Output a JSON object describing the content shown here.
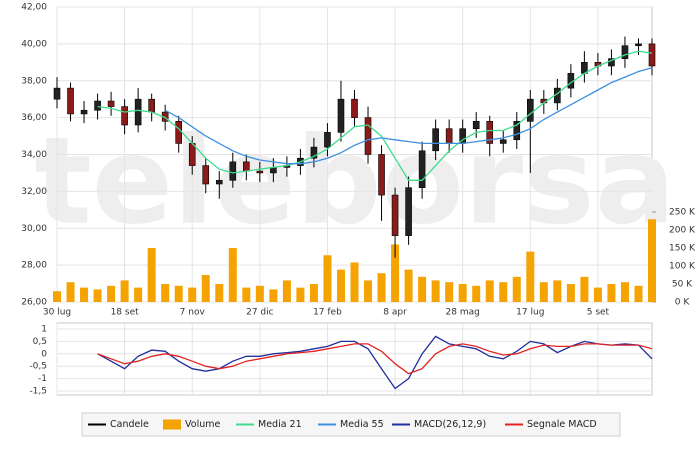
{
  "chart_data": {
    "type": "candlestick",
    "watermark": "teleborsa",
    "grid": true,
    "categories": [
      "30 lug",
      null,
      null,
      null,
      null,
      "18 set",
      null,
      null,
      null,
      null,
      "7 nov",
      null,
      null,
      null,
      null,
      "27 dic",
      null,
      null,
      null,
      null,
      "17 feb",
      null,
      null,
      null,
      null,
      "8 apr",
      null,
      null,
      null,
      null,
      "28 mag",
      null,
      null,
      null,
      null,
      "17 lug",
      null,
      null,
      null,
      null,
      "5 set",
      null,
      null,
      null,
      null
    ],
    "candles": {
      "name": "Candele",
      "color": "#000000",
      "up_color": "#222222",
      "down_color": "#8b1a1a",
      "open": [
        37.0,
        37.6,
        36.2,
        36.4,
        36.9,
        36.6,
        35.6,
        37.0,
        36.3,
        35.8,
        34.6,
        33.4,
        32.4,
        32.6,
        33.6,
        33.1,
        33.0,
        33.3,
        33.4,
        33.8,
        34.4,
        35.2,
        37.0,
        36.0,
        34.0,
        31.8,
        29.6,
        32.2,
        34.2,
        35.4,
        34.6,
        35.4,
        35.8,
        34.6,
        34.8,
        35.8,
        37.0,
        36.8,
        37.6,
        38.4,
        39.0,
        38.8,
        39.2,
        39.9,
        40.0
      ],
      "high": [
        38.2,
        37.9,
        36.9,
        37.3,
        37.4,
        37.0,
        37.6,
        37.3,
        36.7,
        36.1,
        35.0,
        33.8,
        33.1,
        34.1,
        34.0,
        33.6,
        33.8,
        33.9,
        34.3,
        34.9,
        35.7,
        38.0,
        37.5,
        36.6,
        34.5,
        32.2,
        32.8,
        34.7,
        35.9,
        35.9,
        35.9,
        36.3,
        36.1,
        35.3,
        36.3,
        37.5,
        37.5,
        38.1,
        38.9,
        39.6,
        39.5,
        39.7,
        40.4,
        40.3,
        40.3
      ],
      "low": [
        36.5,
        35.8,
        35.7,
        35.9,
        36.1,
        35.1,
        35.2,
        35.8,
        35.3,
        34.1,
        32.9,
        31.9,
        31.6,
        32.2,
        32.6,
        32.5,
        32.5,
        32.8,
        32.9,
        33.3,
        33.9,
        34.7,
        35.5,
        33.5,
        30.4,
        28.4,
        29.1,
        31.6,
        33.7,
        34.1,
        34.1,
        34.9,
        33.9,
        34.1,
        34.3,
        33.0,
        36.2,
        36.4,
        37.1,
        37.9,
        38.3,
        38.3,
        38.7,
        39.4,
        38.3
      ],
      "close": [
        37.6,
        36.2,
        36.4,
        36.9,
        36.6,
        35.6,
        37.0,
        36.3,
        35.8,
        34.6,
        33.4,
        32.4,
        32.6,
        33.6,
        33.1,
        33.0,
        33.3,
        33.4,
        33.8,
        34.4,
        35.2,
        37.0,
        36.0,
        34.0,
        31.8,
        29.6,
        32.2,
        34.2,
        35.4,
        34.6,
        35.4,
        35.8,
        34.6,
        34.8,
        35.8,
        37.0,
        36.8,
        37.6,
        38.4,
        39.0,
        38.8,
        39.2,
        39.9,
        40.0,
        38.8
      ]
    },
    "volume": {
      "name": "Volume",
      "color": "#f5a300",
      "axis": "y2",
      "values": [
        30000,
        55000,
        40000,
        35000,
        45000,
        60000,
        40000,
        150000,
        50000,
        45000,
        40000,
        75000,
        50000,
        150000,
        40000,
        45000,
        35000,
        60000,
        40000,
        50000,
        130000,
        90000,
        110000,
        60000,
        80000,
        160000,
        90000,
        70000,
        60000,
        55000,
        50000,
        45000,
        60000,
        55000,
        70000,
        140000,
        55000,
        60000,
        50000,
        70000,
        40000,
        50000,
        55000,
        45000,
        230000
      ]
    },
    "series": [
      {
        "name": "Media 21",
        "color": "#3ddc8c",
        "values": [
          null,
          null,
          null,
          36.6,
          36.5,
          36.3,
          36.4,
          36.3,
          36.0,
          35.4,
          34.6,
          33.8,
          33.2,
          33.0,
          33.1,
          33.2,
          33.3,
          33.4,
          33.6,
          33.9,
          34.3,
          34.9,
          35.5,
          35.6,
          35.0,
          33.8,
          32.6,
          32.6,
          33.4,
          34.2,
          34.8,
          35.2,
          35.3,
          35.3,
          35.6,
          36.2,
          36.8,
          37.3,
          37.9,
          38.4,
          38.8,
          39.1,
          39.4,
          39.6,
          39.5
        ]
      },
      {
        "name": "Media 55",
        "color": "#3d8fe0",
        "values": [
          null,
          null,
          null,
          null,
          null,
          null,
          null,
          null,
          36.4,
          36.0,
          35.5,
          35.0,
          34.6,
          34.2,
          33.9,
          33.7,
          33.6,
          33.5,
          33.5,
          33.6,
          33.8,
          34.1,
          34.5,
          34.8,
          34.9,
          34.8,
          34.7,
          34.6,
          34.6,
          34.6,
          34.6,
          34.7,
          34.8,
          34.9,
          35.1,
          35.4,
          35.9,
          36.3,
          36.7,
          37.1,
          37.5,
          37.9,
          38.2,
          38.5,
          38.7
        ]
      }
    ],
    "ylim": [
      26,
      42
    ],
    "yticks": [
      {
        "value": 26,
        "label": "26,00"
      },
      {
        "value": 28,
        "label": "28,00"
      },
      {
        "value": 30,
        "label": "30,00"
      },
      {
        "value": 32,
        "label": "32,00"
      },
      {
        "value": 34,
        "label": "34,00"
      },
      {
        "value": 36,
        "label": "36,00"
      },
      {
        "value": 38,
        "label": "38,00"
      },
      {
        "value": 40,
        "label": "40,00"
      },
      {
        "value": 42,
        "label": "42,00"
      }
    ],
    "y2lim": [
      0,
      820000
    ],
    "y2ticks": [
      {
        "value": 0,
        "label": "0 K"
      },
      {
        "value": 50000,
        "label": "50 K"
      },
      {
        "value": 100000,
        "label": "100 K"
      },
      {
        "value": 150000,
        "label": "150 K"
      },
      {
        "value": 200000,
        "label": "200 K"
      },
      {
        "value": 250000,
        "label": "250 K"
      }
    ],
    "macd": {
      "ylim": [
        -1.5,
        1
      ],
      "yticks": [
        {
          "value": -1.5,
          "label": "-1,5"
        },
        -1,
        {
          "value": -0.5,
          "label": "-0,5"
        },
        0,
        {
          "value": 0.5,
          "label": "0,5"
        },
        1
      ],
      "series": [
        {
          "name": "MACD(26,12,9)",
          "color": "#1f2f9e",
          "values": [
            null,
            null,
            null,
            0.0,
            -0.3,
            -0.6,
            -0.1,
            0.15,
            0.1,
            -0.3,
            -0.6,
            -0.7,
            -0.6,
            -0.3,
            -0.1,
            -0.1,
            0.0,
            0.05,
            0.1,
            0.2,
            0.3,
            0.5,
            0.5,
            0.2,
            -0.6,
            -1.4,
            -1.0,
            0.0,
            0.7,
            0.4,
            0.3,
            0.2,
            -0.1,
            -0.2,
            0.1,
            0.5,
            0.4,
            0.05,
            0.3,
            0.5,
            0.4,
            0.35,
            0.4,
            0.35,
            -0.2
          ]
        },
        {
          "name": "Segnale MACD",
          "color": "#e02424",
          "values": [
            null,
            null,
            null,
            0.0,
            -0.2,
            -0.4,
            -0.3,
            -0.1,
            0.0,
            -0.1,
            -0.3,
            -0.5,
            -0.6,
            -0.5,
            -0.3,
            -0.2,
            -0.1,
            0.0,
            0.05,
            0.1,
            0.2,
            0.3,
            0.4,
            0.4,
            0.1,
            -0.4,
            -0.8,
            -0.6,
            0.0,
            0.3,
            0.4,
            0.3,
            0.1,
            -0.05,
            0.0,
            0.2,
            0.35,
            0.3,
            0.3,
            0.4,
            0.4,
            0.35,
            0.35,
            0.35,
            0.2
          ]
        }
      ]
    }
  }
}
